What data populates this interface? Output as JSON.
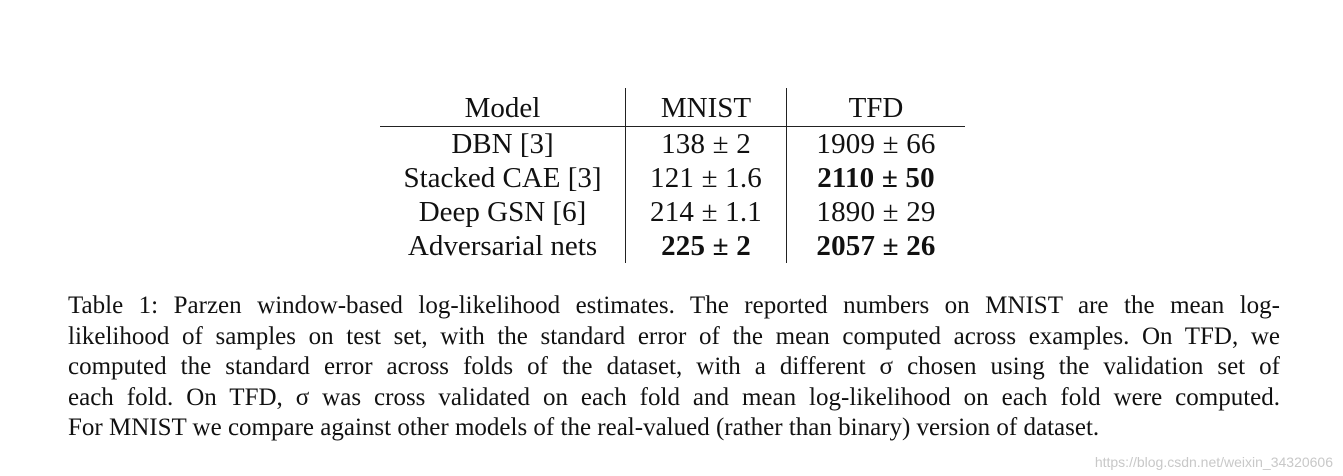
{
  "table": {
    "headers": [
      "Model",
      "MNIST",
      "TFD"
    ],
    "rows": [
      {
        "model": "DBN [3]",
        "mnist": "138 ± 2",
        "tfd": "1909 ± 66",
        "mnist_bold": false,
        "tfd_bold": false
      },
      {
        "model": "Stacked CAE [3]",
        "mnist": "121 ± 1.6",
        "tfd": "2110 ± 50",
        "mnist_bold": false,
        "tfd_bold": true
      },
      {
        "model": "Deep GSN [6]",
        "mnist": "214 ± 1.1",
        "tfd": "1890 ± 29",
        "mnist_bold": false,
        "tfd_bold": false
      },
      {
        "model": "Adversarial nets",
        "mnist": "225 ± 2",
        "tfd": "2057 ± 26",
        "mnist_bold": true,
        "tfd_bold": true
      }
    ]
  },
  "caption": {
    "lines": [
      "Table 1: Parzen window-based log-likelihood estimates. The reported numbers on MNIST are the mean log-",
      "likelihood of samples on test set, with the standard error of the mean computed across examples. On TFD, we",
      "computed the standard error across folds of the dataset, with a different σ chosen using the validation set of",
      "each fold. On TFD, σ was cross validated on each fold and mean log-likelihood on each fold were computed.",
      "For MNIST we compare against other models of the real-valued (rather than binary) version of dataset."
    ]
  },
  "watermark": "https://blog.csdn.net/weixin_34320606"
}
